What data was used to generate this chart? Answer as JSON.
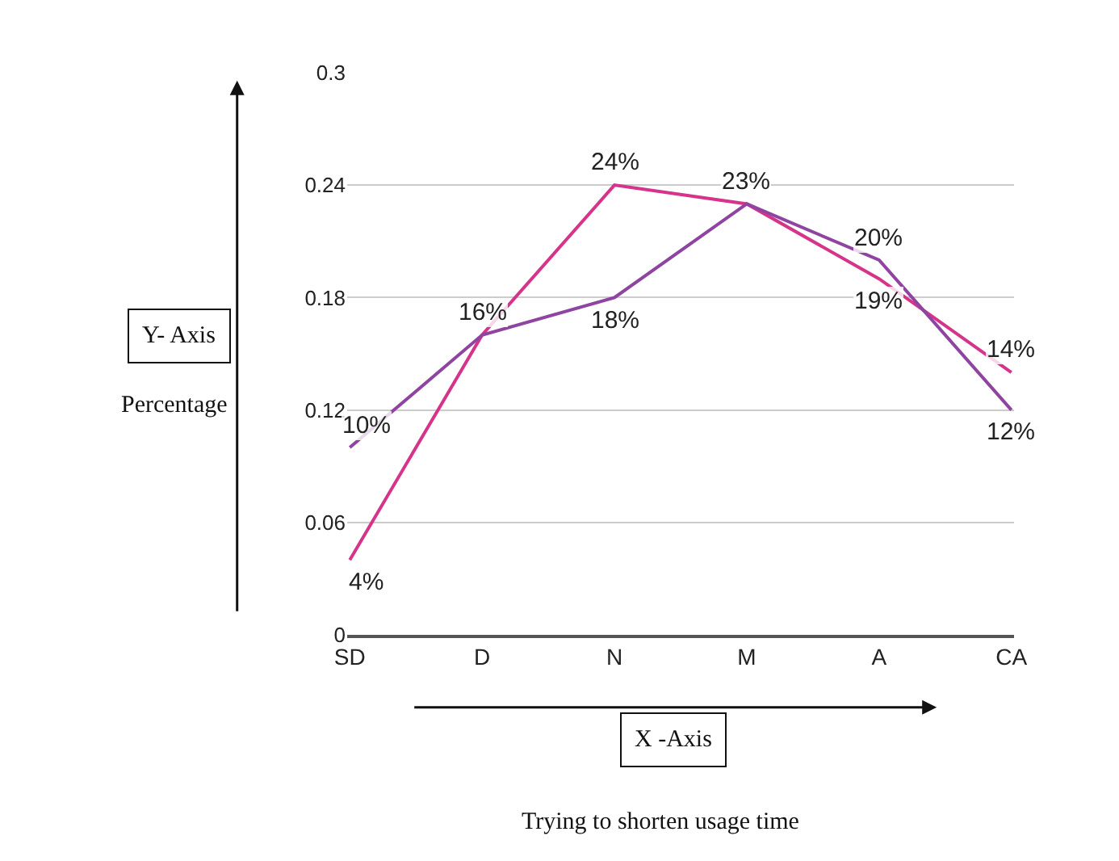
{
  "chart_data": {
    "type": "line",
    "categories": [
      "SD",
      "D",
      "N",
      "M",
      "A",
      "CA"
    ],
    "series": [
      {
        "color": "#d6338a",
        "values": [
          0.04,
          0.16,
          0.24,
          0.23,
          0.19,
          0.14
        ],
        "value_labels": [
          "4%",
          "16%",
          "24%",
          "23%",
          "19%",
          "14%"
        ]
      },
      {
        "color": "#8e44a0",
        "values": [
          0.1,
          0.16,
          0.18,
          0.23,
          0.2,
          0.12
        ],
        "value_labels": [
          "10%",
          null,
          "18%",
          null,
          "20%",
          "12%"
        ]
      }
    ],
    "ylim": [
      0,
      0.3
    ],
    "yticks": [
      0,
      0.06,
      0.12,
      0.18,
      0.24,
      0.3
    ],
    "grid": "y",
    "legend": false,
    "marker": "none",
    "line_style": "solid",
    "annotations": [
      "Y- Axis",
      "Percentage",
      "X -Axis",
      "Trying to shorten usage time"
    ]
  }
}
